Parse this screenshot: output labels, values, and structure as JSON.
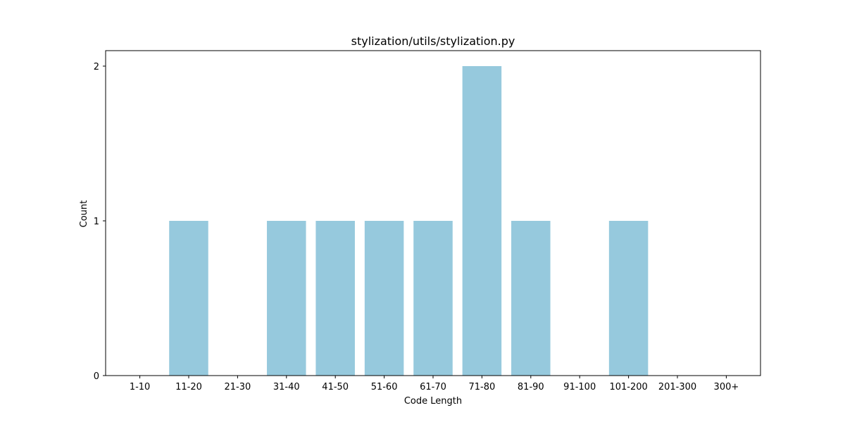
{
  "chart_data": {
    "type": "bar",
    "title": "stylization/utils/stylization.py",
    "xlabel": "Code Length",
    "ylabel": "Count",
    "categories": [
      "1-10",
      "11-20",
      "21-30",
      "31-40",
      "41-50",
      "51-60",
      "61-70",
      "71-80",
      "81-90",
      "91-100",
      "101-200",
      "201-300",
      "300+"
    ],
    "values": [
      0,
      1,
      0,
      1,
      1,
      1,
      1,
      2,
      1,
      0,
      1,
      0,
      0
    ],
    "yticks": [
      0,
      1,
      2
    ],
    "ylim": [
      0,
      2.1
    ],
    "grid": false,
    "bar_color": "#96c9dd"
  }
}
